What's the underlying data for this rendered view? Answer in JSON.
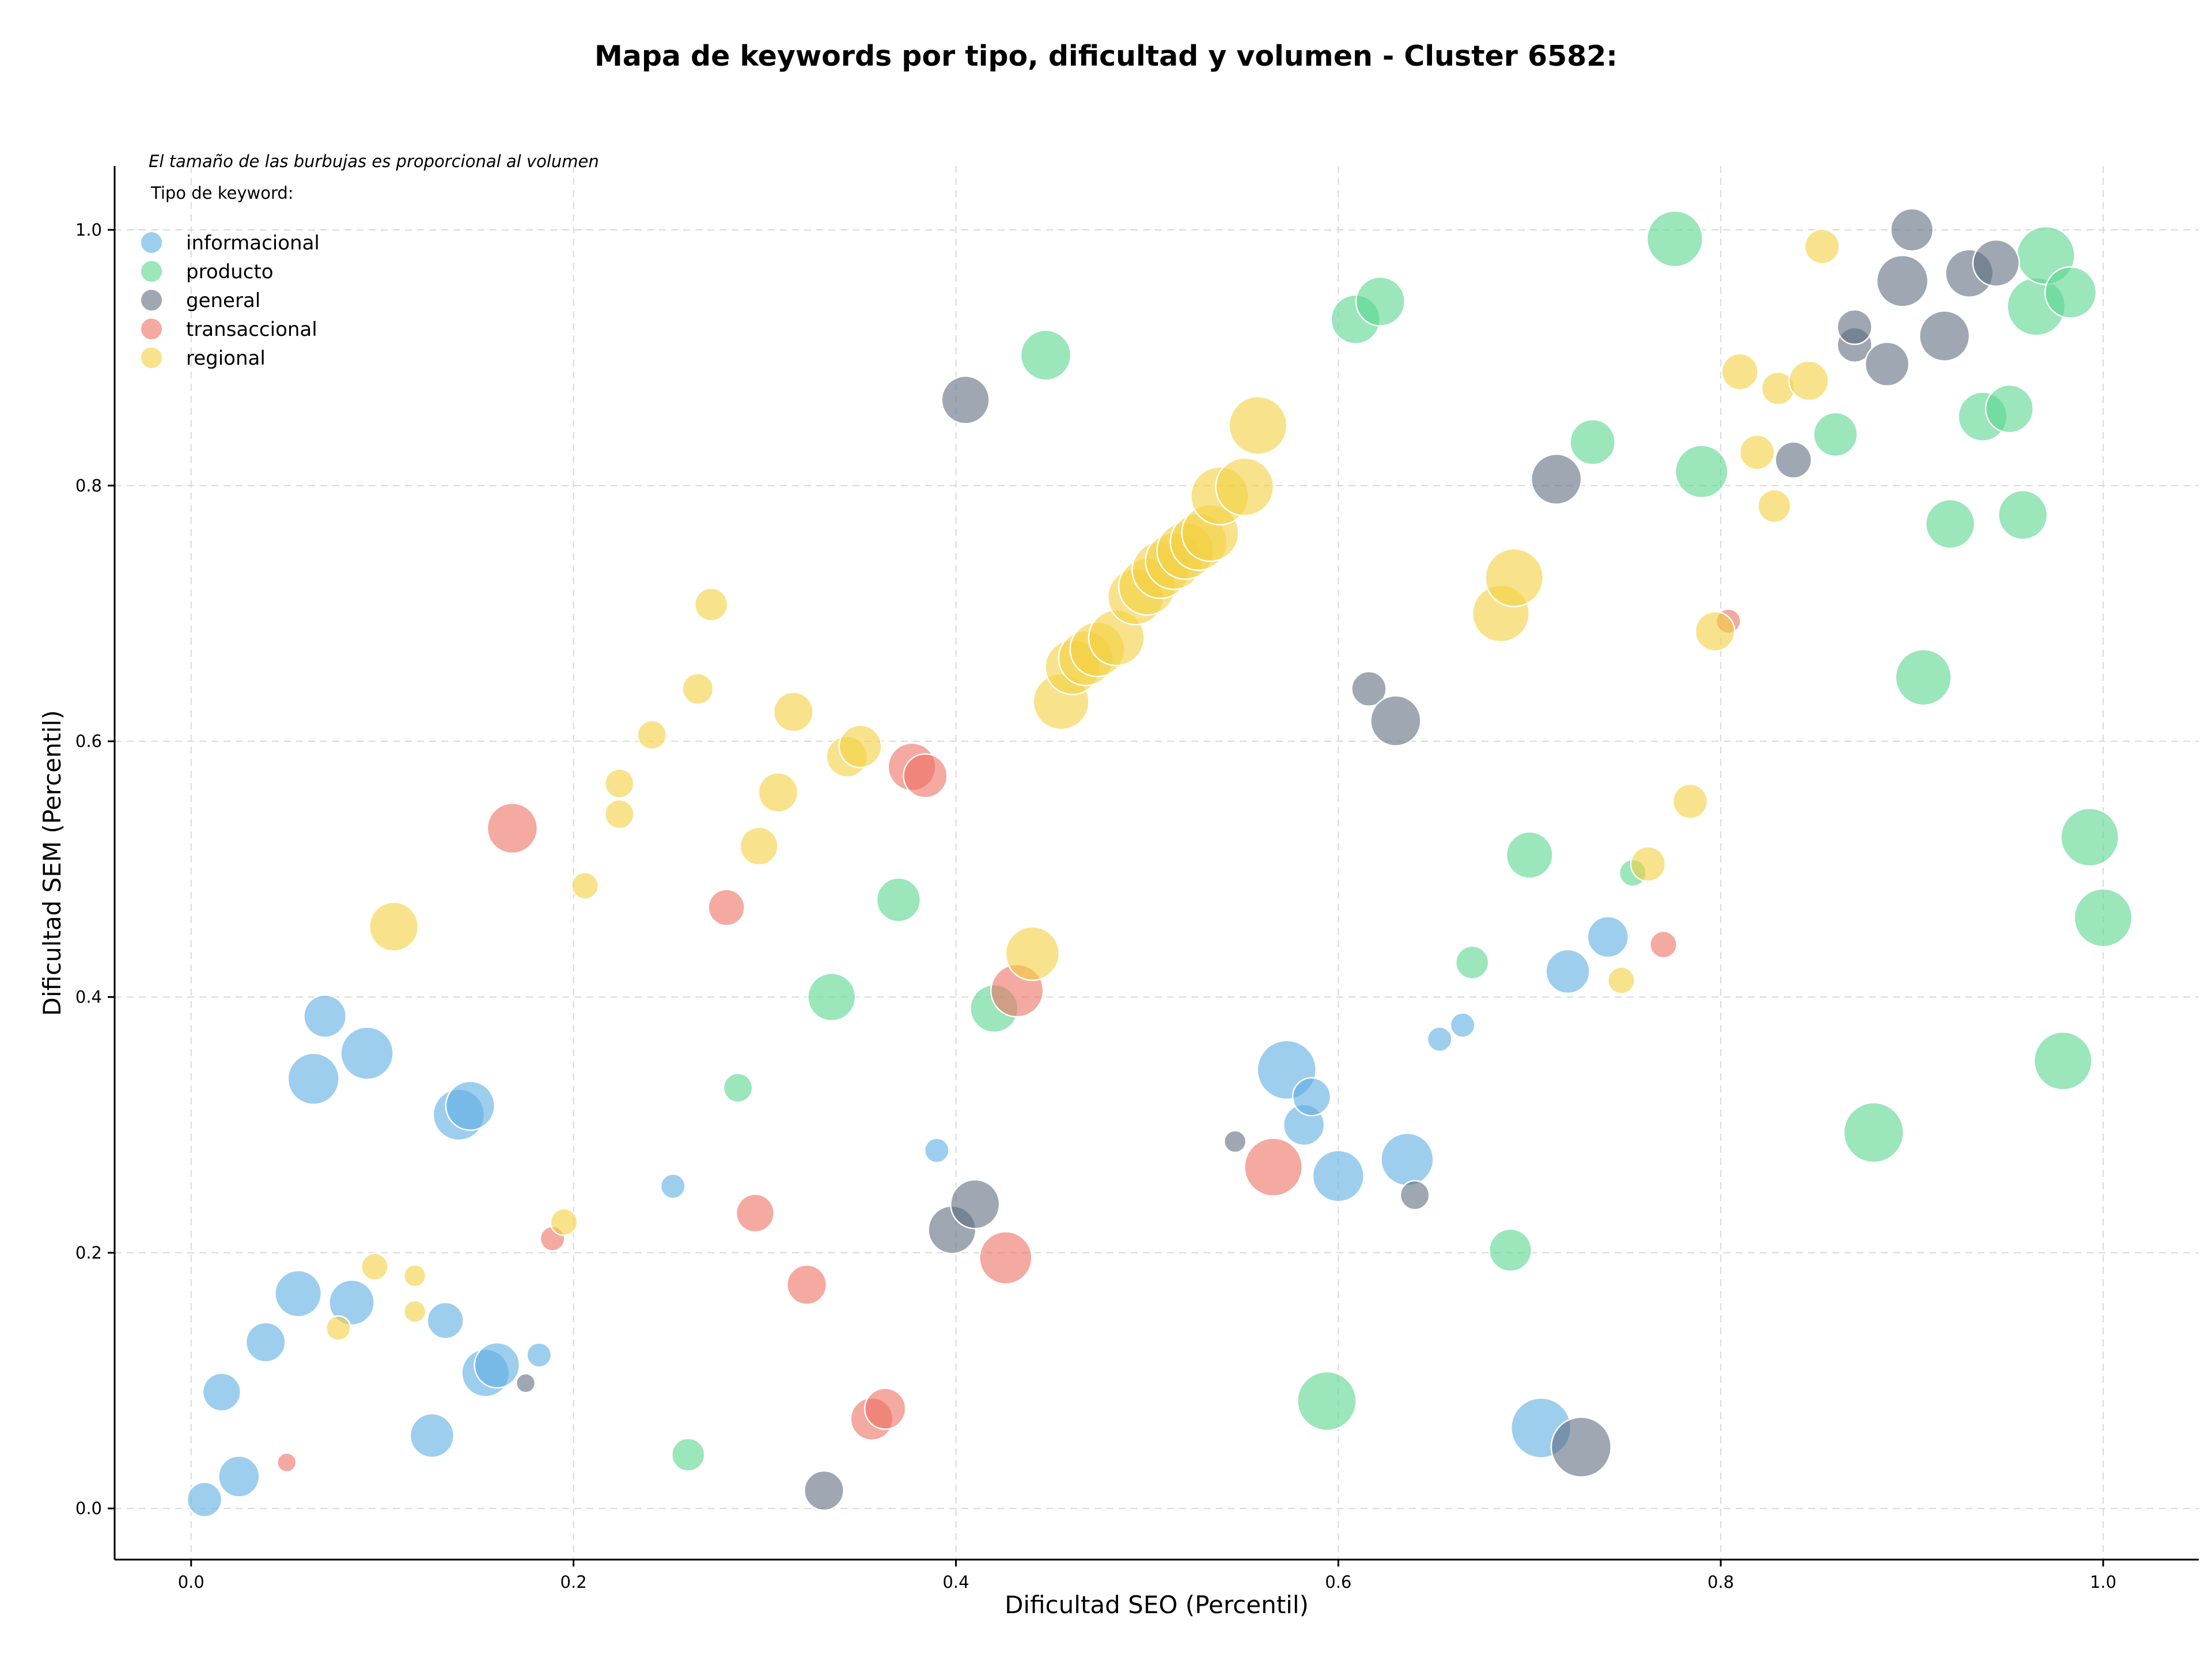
{
  "chart_data": {
    "type": "scatter",
    "title": "Mapa de keywords por tipo, dificultad y volumen - Cluster 6582:",
    "subtitle": "El tamaño de las burbujas es proporcional al volumen",
    "xlabel": "Dificultad SEO (Percentil)",
    "ylabel": "Dificultad SEM (Percentil)",
    "xlim": [
      -0.04,
      1.05
    ],
    "ylim": [
      -0.04,
      1.05
    ],
    "x_ticks": [
      "0.0",
      "0.2",
      "0.4",
      "0.6",
      "0.8",
      "1.0"
    ],
    "y_ticks": [
      "0.0",
      "0.2",
      "0.4",
      "0.6",
      "0.8",
      "1.0"
    ],
    "grid": true,
    "legend_title": "Tipo de keyword:",
    "legend_position": "top-left",
    "series": [
      {
        "name": "informacional",
        "color": "#5dade2",
        "points": [
          [
            0.007,
            0.007,
            1.0
          ],
          [
            0.016,
            0.091,
            1.2
          ],
          [
            0.025,
            0.025,
            1.4
          ],
          [
            0.039,
            0.13,
            1.3
          ],
          [
            0.056,
            0.168,
            1.8
          ],
          [
            0.064,
            0.336,
            2.2
          ],
          [
            0.07,
            0.385,
            1.5
          ],
          [
            0.084,
            0.161,
            1.7
          ],
          [
            0.092,
            0.356,
            2.3
          ],
          [
            0.126,
            0.057,
            1.6
          ],
          [
            0.133,
            0.147,
            1.1
          ],
          [
            0.14,
            0.308,
            2.2
          ],
          [
            0.146,
            0.315,
            2.0
          ],
          [
            0.154,
            0.106,
            1.9
          ],
          [
            0.16,
            0.112,
            1.7
          ],
          [
            0.182,
            0.12,
            0.5
          ],
          [
            0.252,
            0.252,
            0.5
          ],
          [
            0.39,
            0.28,
            0.5
          ],
          [
            0.573,
            0.343,
            2.9
          ],
          [
            0.582,
            0.3,
            1.4
          ],
          [
            0.586,
            0.322,
            1.2
          ],
          [
            0.6,
            0.26,
            2.2
          ],
          [
            0.636,
            0.273,
            2.3
          ],
          [
            0.653,
            0.367,
            0.5
          ],
          [
            0.665,
            0.378,
            0.5
          ],
          [
            0.706,
            0.063,
            3.0
          ],
          [
            0.72,
            0.42,
            1.6
          ],
          [
            0.741,
            0.447,
            1.4
          ]
        ]
      },
      {
        "name": "producto",
        "color": "#58d68d",
        "points": [
          [
            0.26,
            0.042,
            0.9
          ],
          [
            0.286,
            0.329,
            0.7
          ],
          [
            0.335,
            0.4,
            1.9
          ],
          [
            0.37,
            0.476,
            1.6
          ],
          [
            0.42,
            0.391,
            1.9
          ],
          [
            0.447,
            0.902,
            2.1
          ],
          [
            0.594,
            0.084,
            2.9
          ],
          [
            0.609,
            0.93,
            2.0
          ],
          [
            0.622,
            0.944,
            2.0
          ],
          [
            0.67,
            0.427,
            0.9
          ],
          [
            0.69,
            0.202,
            1.5
          ],
          [
            0.7,
            0.511,
            1.8
          ],
          [
            0.733,
            0.834,
            1.7
          ],
          [
            0.754,
            0.497,
            0.6
          ],
          [
            0.776,
            0.993,
            2.6
          ],
          [
            0.79,
            0.811,
            2.3
          ],
          [
            0.86,
            0.84,
            1.6
          ],
          [
            0.88,
            0.294,
            3.0
          ],
          [
            0.906,
            0.65,
            2.6
          ],
          [
            0.92,
            0.77,
            2.0
          ],
          [
            0.937,
            0.854,
            2.0
          ],
          [
            0.951,
            0.86,
            1.9
          ],
          [
            0.958,
            0.777,
            2.0
          ],
          [
            0.965,
            0.94,
            2.8
          ],
          [
            0.97,
            0.98,
            2.8
          ],
          [
            0.983,
            0.951,
            2.2
          ],
          [
            0.979,
            0.35,
            2.8
          ],
          [
            0.993,
            0.525,
            2.8
          ],
          [
            1.0,
            0.462,
            2.8
          ]
        ]
      },
      {
        "name": "general",
        "color": "#5d6d7e",
        "points": [
          [
            0.175,
            0.098,
            0.3
          ],
          [
            0.331,
            0.014,
            1.3
          ],
          [
            0.398,
            0.218,
            1.9
          ],
          [
            0.41,
            0.238,
            2.0
          ],
          [
            0.405,
            0.867,
            1.9
          ],
          [
            0.546,
            0.287,
            0.4
          ],
          [
            0.616,
            0.641,
            1.0
          ],
          [
            0.63,
            0.616,
            2.1
          ],
          [
            0.64,
            0.245,
            0.7
          ],
          [
            0.714,
            0.805,
            2.1
          ],
          [
            0.727,
            0.048,
            3.0
          ],
          [
            0.838,
            0.82,
            1.1
          ],
          [
            0.87,
            0.91,
            1.0
          ],
          [
            0.87,
            0.924,
            1.0
          ],
          [
            0.887,
            0.895,
            1.6
          ],
          [
            0.895,
            0.96,
            2.2
          ],
          [
            0.9,
            1.0,
            1.5
          ],
          [
            0.917,
            0.917,
            2.1
          ],
          [
            0.93,
            0.966,
            1.9
          ],
          [
            0.944,
            0.974,
            1.8
          ]
        ]
      },
      {
        "name": "transaccional",
        "color": "#ec7063",
        "points": [
          [
            0.05,
            0.036,
            0.3
          ],
          [
            0.168,
            0.532,
            2.1
          ],
          [
            0.189,
            0.211,
            0.5
          ],
          [
            0.28,
            0.47,
            1.1
          ],
          [
            0.295,
            0.231,
            1.2
          ],
          [
            0.322,
            0.175,
            1.3
          ],
          [
            0.356,
            0.07,
            1.5
          ],
          [
            0.363,
            0.078,
            1.4
          ],
          [
            0.377,
            0.58,
            1.9
          ],
          [
            0.384,
            0.573,
            1.6
          ],
          [
            0.426,
            0.196,
            2.3
          ],
          [
            0.432,
            0.405,
            2.3
          ],
          [
            0.566,
            0.267,
            2.8
          ],
          [
            0.77,
            0.441,
            0.6
          ],
          [
            0.804,
            0.694,
            0.5
          ]
        ]
      },
      {
        "name": "regional",
        "color": "#f4d03f",
        "points": [
          [
            0.077,
            0.141,
            0.5
          ],
          [
            0.096,
            0.189,
            0.6
          ],
          [
            0.106,
            0.455,
            2.0
          ],
          [
            0.117,
            0.182,
            0.4
          ],
          [
            0.117,
            0.154,
            0.4
          ],
          [
            0.195,
            0.224,
            0.6
          ],
          [
            0.206,
            0.487,
            0.6
          ],
          [
            0.224,
            0.567,
            0.7
          ],
          [
            0.224,
            0.543,
            0.7
          ],
          [
            0.241,
            0.605,
            0.7
          ],
          [
            0.265,
            0.641,
            0.8
          ],
          [
            0.272,
            0.707,
            0.9
          ],
          [
            0.297,
            0.518,
            1.2
          ],
          [
            0.307,
            0.56,
            1.3
          ],
          [
            0.315,
            0.623,
            1.3
          ],
          [
            0.343,
            0.588,
            1.4
          ],
          [
            0.35,
            0.596,
            1.5
          ],
          [
            0.44,
            0.434,
            2.4
          ],
          [
            0.455,
            0.631,
            2.6
          ],
          [
            0.461,
            0.658,
            2.5
          ],
          [
            0.468,
            0.665,
            2.5
          ],
          [
            0.474,
            0.672,
            2.5
          ],
          [
            0.484,
            0.681,
            2.6
          ],
          [
            0.494,
            0.713,
            2.6
          ],
          [
            0.5,
            0.721,
            2.7
          ],
          [
            0.507,
            0.734,
            2.7
          ],
          [
            0.514,
            0.741,
            2.7
          ],
          [
            0.52,
            0.749,
            2.7
          ],
          [
            0.527,
            0.756,
            2.7
          ],
          [
            0.533,
            0.763,
            2.7
          ],
          [
            0.538,
            0.792,
            2.8
          ],
          [
            0.551,
            0.799,
            2.8
          ],
          [
            0.558,
            0.847,
            2.8
          ],
          [
            0.685,
            0.7,
            2.7
          ],
          [
            0.692,
            0.728,
            2.8
          ],
          [
            0.748,
            0.413,
            0.6
          ],
          [
            0.762,
            0.504,
            1.0
          ],
          [
            0.784,
            0.553,
            1.0
          ],
          [
            0.797,
            0.686,
            1.3
          ],
          [
            0.81,
            0.889,
            1.1
          ],
          [
            0.819,
            0.826,
            1.0
          ],
          [
            0.828,
            0.784,
            0.9
          ],
          [
            0.83,
            0.876,
            0.9
          ],
          [
            0.846,
            0.882,
            1.3
          ],
          [
            0.853,
            0.987,
            1.0
          ]
        ]
      }
    ]
  }
}
